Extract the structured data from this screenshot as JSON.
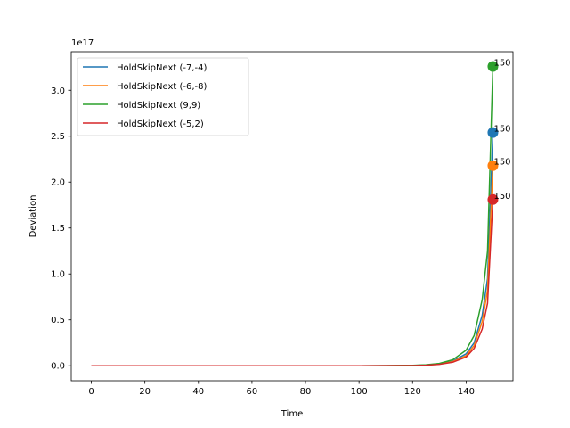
{
  "chart_data": {
    "type": "line",
    "title": "",
    "xlabel": "Time",
    "ylabel": "Deviation",
    "offset_text": "1e17",
    "xlim": [
      -7.5,
      157.5
    ],
    "ylim": [
      -0.163,
      3.42
    ],
    "xticks": [
      0,
      20,
      40,
      60,
      80,
      100,
      120,
      140
    ],
    "yticks": [
      0.0,
      0.5,
      1.0,
      1.5,
      2.0,
      2.5,
      3.0
    ],
    "xtick_labels": [
      "0",
      "20",
      "40",
      "60",
      "80",
      "100",
      "120",
      "140"
    ],
    "ytick_labels": [
      "0.0",
      "0.5",
      "1.0",
      "1.5",
      "2.0",
      "2.5",
      "3.0"
    ],
    "grid": false,
    "legend_position": "top-left",
    "x": [
      0,
      20,
      40,
      60,
      80,
      100,
      110,
      120,
      125,
      130,
      135,
      140,
      143,
      146,
      148,
      150
    ],
    "series": [
      {
        "name": "HoldSkipNext (-7,-4)",
        "color": "#1f77b4",
        "values": [
          0,
          0,
          0,
          0,
          0,
          0.0001,
          0.0005,
          0.003,
          0.008,
          0.02,
          0.05,
          0.13,
          0.25,
          0.55,
          0.95,
          2.54
        ],
        "end_label": "150"
      },
      {
        "name": "HoldSkipNext (-6,-8)",
        "color": "#ff7f0e",
        "values": [
          0,
          0,
          0,
          0,
          0,
          0.0001,
          0.0005,
          0.003,
          0.007,
          0.018,
          0.045,
          0.11,
          0.22,
          0.48,
          0.82,
          2.18
        ],
        "end_label": "150"
      },
      {
        "name": "HoldSkipNext (9,9)",
        "color": "#2ca02c",
        "values": [
          0,
          0,
          0,
          0,
          0,
          0.0001,
          0.0006,
          0.004,
          0.01,
          0.025,
          0.065,
          0.17,
          0.33,
          0.72,
          1.25,
          3.26
        ],
        "end_label": "150"
      },
      {
        "name": "HoldSkipNext (-5,2)",
        "color": "#d62728",
        "values": [
          0,
          0,
          0,
          0,
          0,
          0.0001,
          0.0004,
          0.0025,
          0.006,
          0.015,
          0.038,
          0.095,
          0.19,
          0.4,
          0.68,
          1.81
        ],
        "end_label": "150"
      }
    ]
  }
}
